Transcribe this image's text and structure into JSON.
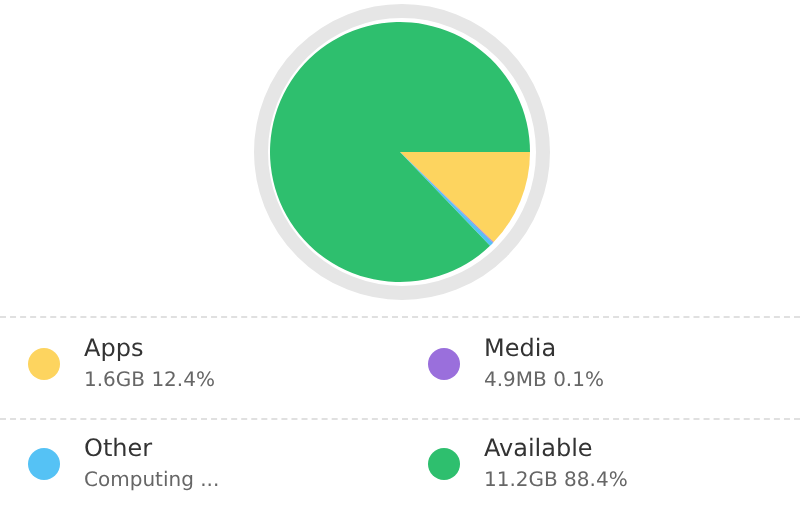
{
  "chart_data": {
    "type": "pie",
    "categories": [
      "Apps",
      "Media",
      "Other",
      "Available"
    ],
    "values": [
      12.4,
      0.1,
      0.5,
      88.4
    ],
    "colors": [
      "#fdd45f",
      "#9a6fdc",
      "#55c2f5",
      "#2ebf6e"
    ],
    "value_labels": [
      "1.6GB 12.4%",
      "4.9MB 0.1%",
      "Computing ...",
      "11.2GB 88.4%"
    ],
    "legend": "bottom"
  }
}
